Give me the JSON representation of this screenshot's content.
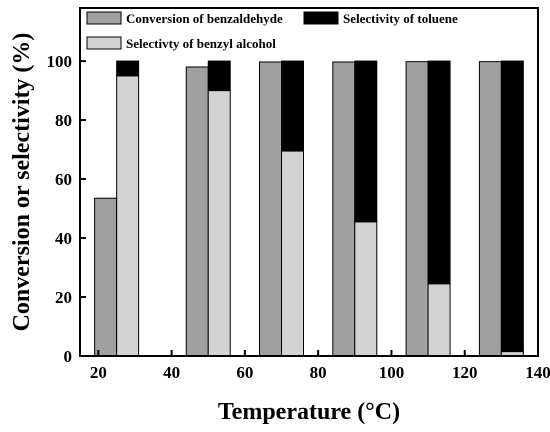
{
  "chart_data": {
    "type": "bar",
    "xlabel": "Temperature (°C)",
    "ylabel": "Conversion or selectivity (%)",
    "xlim": [
      15,
      140
    ],
    "ylim": [
      0,
      118
    ],
    "xticks": [
      20,
      40,
      60,
      80,
      100,
      120,
      140
    ],
    "yticks": [
      0,
      20,
      40,
      60,
      80,
      100
    ],
    "x": [
      25,
      50,
      70,
      90,
      110,
      130
    ],
    "bar_width": 6,
    "series": [
      {
        "name": "Conversion of  benzaldehyde",
        "color": "#a0a0a0",
        "values": [
          53.5,
          98,
          99.7,
          99.7,
          99.8,
          99.8
        ]
      },
      {
        "name": "Selectivty of benzyl alcohol",
        "color": "#d3d3d3",
        "values": [
          95,
          90,
          69.5,
          45.5,
          24.5,
          1.5
        ]
      },
      {
        "name": "Selectivity  of toluene",
        "color": "#000000",
        "values": [
          5,
          10,
          30.5,
          54.5,
          75.5,
          98.5
        ]
      }
    ],
    "legend_position": "top",
    "grid": false
  }
}
